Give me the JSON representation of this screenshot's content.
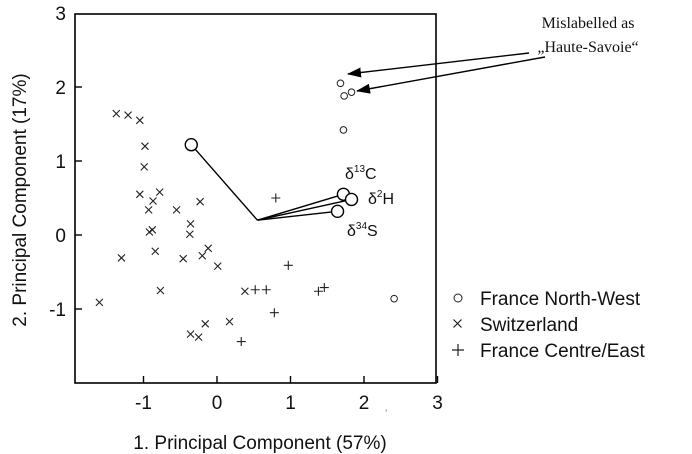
{
  "chart_data": {
    "type": "scatter",
    "title": "",
    "xlabel": "1. Principal Component (57%)",
    "ylabel": "2. Principal Component (17%)",
    "xlim": [
      -2,
      3
    ],
    "ylim": [
      -2,
      3
    ],
    "x_ticks": [
      "-1",
      "0",
      "1",
      "2",
      "3"
    ],
    "y_ticks": [
      "3",
      "2",
      "1",
      "0",
      "-1"
    ],
    "x_tick_values": [
      -1,
      0,
      1,
      2,
      3
    ],
    "y_tick_values": [
      3,
      2,
      1,
      0,
      -1
    ],
    "grid": false,
    "legend_position": "bottom-right outside",
    "series": [
      {
        "name": "France North-West",
        "marker": "circle",
        "points": [
          {
            "x": 1.68,
            "y": 2.05
          },
          {
            "x": 1.73,
            "y": 1.88
          },
          {
            "x": 1.83,
            "y": 1.93
          },
          {
            "x": 1.72,
            "y": 1.42
          },
          {
            "x": 2.41,
            "y": -0.86
          }
        ]
      },
      {
        "name": "Switzerland",
        "marker": "x",
        "points": [
          {
            "x": -1.37,
            "y": 1.64
          },
          {
            "x": -1.21,
            "y": 1.62
          },
          {
            "x": -1.05,
            "y": 1.55
          },
          {
            "x": -0.98,
            "y": 1.2
          },
          {
            "x": -0.99,
            "y": 0.92
          },
          {
            "x": -1.05,
            "y": 0.55
          },
          {
            "x": -0.78,
            "y": 0.58
          },
          {
            "x": -0.87,
            "y": 0.46
          },
          {
            "x": -0.93,
            "y": 0.34
          },
          {
            "x": -0.55,
            "y": 0.34
          },
          {
            "x": -0.23,
            "y": 0.45
          },
          {
            "x": -0.36,
            "y": 0.15
          },
          {
            "x": -0.88,
            "y": 0.07
          },
          {
            "x": -0.92,
            "y": 0.04
          },
          {
            "x": -0.37,
            "y": 0.01
          },
          {
            "x": -0.84,
            "y": -0.22
          },
          {
            "x": -0.12,
            "y": -0.18
          },
          {
            "x": -0.2,
            "y": -0.28
          },
          {
            "x": -0.46,
            "y": -0.32
          },
          {
            "x": 0.01,
            "y": -0.42
          },
          {
            "x": -1.3,
            "y": -0.31
          },
          {
            "x": -0.77,
            "y": -0.75
          },
          {
            "x": -1.6,
            "y": -0.91
          },
          {
            "x": -0.16,
            "y": -1.2
          },
          {
            "x": -0.36,
            "y": -1.34
          },
          {
            "x": -0.25,
            "y": -1.38
          },
          {
            "x": 0.17,
            "y": -1.17
          },
          {
            "x": 0.38,
            "y": -0.76
          }
        ]
      },
      {
        "name": "France Centre/East",
        "marker": "plus",
        "points": [
          {
            "x": 0.52,
            "y": -0.74
          },
          {
            "x": 0.67,
            "y": -0.74
          },
          {
            "x": 0.97,
            "y": -0.41
          },
          {
            "x": 1.38,
            "y": -0.76
          },
          {
            "x": 1.46,
            "y": -0.71
          },
          {
            "x": 0.78,
            "y": -1.05
          },
          {
            "x": 0.33,
            "y": -1.44
          },
          {
            "x": 0.8,
            "y": 0.5
          }
        ]
      }
    ],
    "loadings": {
      "origin": {
        "x": 0.55,
        "y": 0.2
      },
      "vectors": [
        {
          "name": "unlabeled",
          "x": -0.35,
          "y": 1.22
        },
        {
          "name": "δ13C",
          "x": 1.72,
          "y": 0.55
        },
        {
          "name": "δ2H",
          "x": 1.83,
          "y": 0.48
        },
        {
          "name": "δ34S",
          "x": 1.64,
          "y": 0.32
        }
      ],
      "labels": [
        {
          "base": "δ",
          "sup": "13",
          "tail": "C"
        },
        {
          "base": "δ",
          "sup": "2",
          "tail": "H"
        },
        {
          "base": "δ",
          "sup": "34",
          "tail": "S"
        }
      ]
    },
    "annotation": {
      "line1": "Mislabelled as",
      "line2": "„Haute-Savoie“",
      "arrow_targets": [
        {
          "x": 1.68,
          "y": 2.05
        },
        {
          "x": 1.83,
          "y": 1.93
        }
      ]
    },
    "stray_mark": "ʼ"
  }
}
